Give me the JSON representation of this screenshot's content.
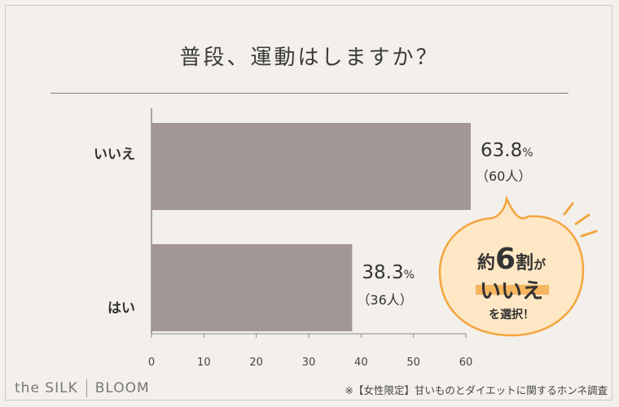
{
  "chart_data": {
    "type": "bar",
    "orientation": "horizontal",
    "title": "普段、運動はしますか？",
    "categories": [
      "いいえ",
      "はい"
    ],
    "values": [
      63.8,
      38.3
    ],
    "counts": [
      "（60人）",
      "（36人）"
    ],
    "value_labels": [
      "63.8",
      "38.3"
    ],
    "unit": "%",
    "xlim": [
      0,
      60
    ],
    "xticks": [
      "0",
      "10",
      "20",
      "30",
      "40",
      "50",
      "60"
    ],
    "grid": false,
    "bar_color": "#a39795"
  },
  "callout": {
    "line1_pre": "約",
    "line1_num": "6",
    "line1_post": "割",
    "line1_particle": "が",
    "line2": "いいえ",
    "line3": "を選択！",
    "fill": "#fde7c4",
    "stroke": "#f3a53f"
  },
  "brand": {
    "left": "the SILK",
    "right": "BLOOM"
  },
  "source": "※【女性限定】甘いものとダイエットに関するホンネ調査"
}
